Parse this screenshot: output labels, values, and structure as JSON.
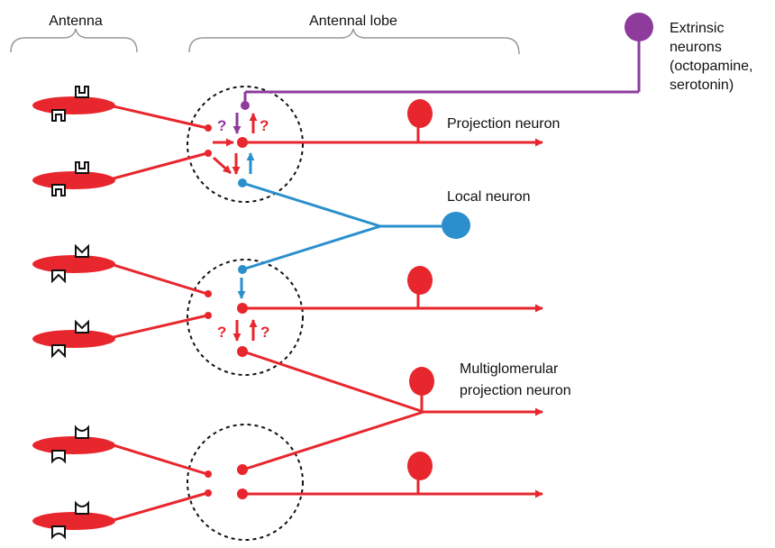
{
  "labels": {
    "antenna": "Antenna",
    "antennal_lobe": "Antennal lobe",
    "extrinsic": [
      "Extrinsic",
      "neurons",
      "(octopamine,",
      "serotonin)"
    ],
    "projection_neuron": "Projection neuron",
    "local_neuron": "Local neuron",
    "multiglomerular": [
      "Multiglomerular",
      "projection neuron"
    ],
    "unknown": "?"
  },
  "colors": {
    "sensory": "#e8262d",
    "local": "#2a8fcc",
    "extrinsic": "#8e3b9c",
    "bracket": "#999999",
    "glomerulus": "#111111",
    "receptor": "#111111"
  },
  "icons": {
    "receptor_top": "receptor-notch-icon",
    "receptor_bottom": "receptor-notch-icon",
    "arrowhead": "arrowhead-icon"
  }
}
